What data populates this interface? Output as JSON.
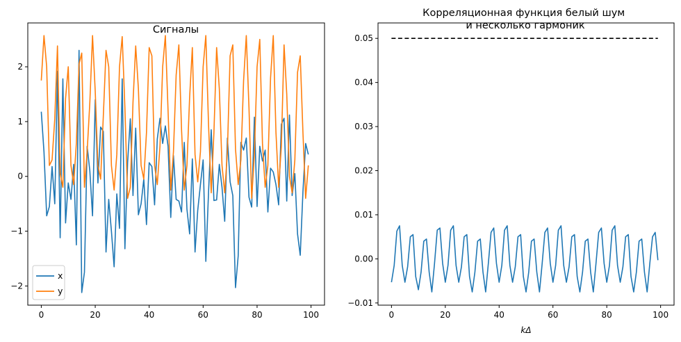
{
  "figure": {
    "colors": {
      "x": "#1f77b4",
      "y": "#ff7f0e",
      "reference": "#000000"
    }
  },
  "chart_data": [
    {
      "type": "line",
      "title": "Сигналы",
      "xlabel": "",
      "ylabel": "",
      "xlim": [
        -5,
        105
      ],
      "ylim": [
        -2.35,
        2.8
      ],
      "xticks": [
        0,
        20,
        40,
        60,
        80,
        100
      ],
      "yticks": [
        -2,
        -1,
        0,
        1,
        2
      ],
      "xtick_labels": [
        "0",
        "20",
        "40",
        "60",
        "80",
        "100"
      ],
      "ytick_labels": [
        "−2",
        "−1",
        "0",
        "1",
        "2"
      ],
      "grid": false,
      "legend": "lower-left",
      "series": [
        {
          "name": "x",
          "color": "#1f77b4",
          "values": [
            1.18,
            0.45,
            -0.72,
            -0.55,
            0.18,
            -0.5,
            1.92,
            -1.12,
            1.78,
            -0.85,
            -0.12,
            -0.42,
            0.22,
            -1.25,
            2.3,
            -2.12,
            -1.75,
            0.55,
            0.1,
            -0.72,
            1.4,
            -0.12,
            0.9,
            0.82,
            -1.38,
            -0.42,
            -1.0,
            -1.65,
            -0.32,
            -0.95,
            1.78,
            -1.32,
            0.25,
            1.05,
            -0.35,
            0.88,
            -0.7,
            -0.5,
            -0.05,
            -0.88,
            0.25,
            0.18,
            -0.52,
            0.68,
            1.06,
            0.6,
            0.92,
            0.55,
            -0.75,
            0.38,
            -0.42,
            -0.45,
            -0.65,
            0.62,
            -0.6,
            -1.05,
            0.32,
            -1.38,
            -0.62,
            -0.15,
            0.3,
            -1.55,
            -0.3,
            0.85,
            -0.44,
            -0.43,
            0.22,
            -0.2,
            -0.82,
            0.7,
            -0.1,
            -0.35,
            -2.03,
            -1.45,
            0.62,
            0.48,
            0.7,
            -0.38,
            -0.56,
            1.08,
            -0.55,
            0.55,
            0.28,
            0.48,
            -0.65,
            0.15,
            0.08,
            -0.15,
            -0.52,
            0.95,
            1.06,
            -0.45,
            1.12,
            -0.35,
            0.05,
            -1.05,
            -1.44,
            -0.28,
            0.6,
            0.4
          ]
        },
        {
          "name": "y",
          "color": "#ff7f0e",
          "values": [
            1.75,
            2.57,
            2.0,
            0.2,
            0.3,
            1.05,
            2.38,
            0.05,
            -0.2,
            1.42,
            2.0,
            0.2,
            -0.15,
            0.6,
            2.05,
            2.25,
            -0.2,
            0.45,
            1.35,
            2.57,
            1.55,
            0.2,
            -0.05,
            1.1,
            2.3,
            2.0,
            0.2,
            -0.25,
            0.4,
            2.0,
            2.55,
            1.25,
            -0.4,
            -0.2,
            1.35,
            2.38,
            1.6,
            0.2,
            -0.05,
            0.8,
            2.35,
            2.2,
            0.2,
            -0.15,
            0.55,
            2.0,
            2.57,
            1.2,
            -0.25,
            0.45,
            1.85,
            2.4,
            0.85,
            -0.25,
            0.2,
            1.45,
            2.35,
            0.4,
            -0.1,
            0.45,
            2.0,
            2.57,
            0.95,
            -0.3,
            0.8,
            2.35,
            1.6,
            0.2,
            -0.3,
            0.45,
            2.2,
            2.4,
            0.5,
            -0.15,
            0.3,
            1.75,
            2.57,
            1.25,
            -0.4,
            0.4,
            2.0,
            2.5,
            0.6,
            -0.2,
            0.2,
            1.8,
            2.57,
            0.8,
            -0.2,
            0.55,
            2.4,
            1.5,
            0.0,
            -0.3,
            0.3,
            1.9,
            2.2,
            0.8,
            -0.4,
            0.2
          ]
        }
      ]
    },
    {
      "type": "line",
      "title": "Корреляционная функция белый шум\nи несколько гармоник",
      "xlabel": "kΔ",
      "ylabel": "",
      "xlim": [
        -5,
        105
      ],
      "ylim": [
        -0.0105,
        0.0535
      ],
      "xticks": [
        0,
        20,
        40,
        60,
        80,
        100
      ],
      "yticks": [
        -0.01,
        0.0,
        0.01,
        0.02,
        0.03,
        0.04,
        0.05
      ],
      "xtick_labels": [
        "0",
        "20",
        "40",
        "60",
        "80",
        "100"
      ],
      "ytick_labels": [
        "−0.01",
        "0.00",
        "0.01",
        "0.02",
        "0.03",
        "0.04",
        "0.05"
      ],
      "grid": false,
      "legend": "none",
      "series": [
        {
          "name": "",
          "color": "#1f77b4",
          "values": [
            -0.0053,
            -0.0015,
            0.0063,
            0.0075,
            -0.0015,
            -0.0053,
            -0.0018,
            0.005,
            0.0055,
            -0.004,
            -0.007,
            -0.003,
            0.004,
            0.0045,
            -0.003,
            -0.0075,
            -0.001,
            0.0065,
            0.007,
            -0.001,
            -0.0053,
            -0.0015,
            0.0065,
            0.0075,
            -0.0015,
            -0.0053,
            -0.0018,
            0.005,
            0.0055,
            -0.004,
            -0.0075,
            -0.003,
            0.004,
            0.0045,
            -0.003,
            -0.0075,
            -0.001,
            0.006,
            0.007,
            -0.001,
            -0.0053,
            -0.0015,
            0.0065,
            0.0075,
            -0.0015,
            -0.0053,
            -0.0018,
            0.005,
            0.0055,
            -0.004,
            -0.0075,
            -0.003,
            0.004,
            0.0045,
            -0.003,
            -0.0075,
            -0.001,
            0.006,
            0.007,
            -0.001,
            -0.0053,
            -0.0015,
            0.0065,
            0.0075,
            -0.0015,
            -0.0053,
            -0.0018,
            0.005,
            0.0055,
            -0.004,
            -0.0075,
            -0.003,
            0.004,
            0.0045,
            -0.003,
            -0.0075,
            -0.001,
            0.006,
            0.007,
            -0.001,
            -0.0053,
            -0.0015,
            0.0065,
            0.0075,
            -0.0015,
            -0.0053,
            -0.0018,
            0.005,
            0.0055,
            -0.004,
            -0.0075,
            -0.003,
            0.004,
            0.0045,
            -0.003,
            -0.0075,
            -0.001,
            0.005,
            0.006,
            -0.0003
          ]
        },
        {
          "name": "",
          "color": "#000000",
          "style": "dashed",
          "x": [
            0,
            99
          ],
          "values": [
            0.05,
            0.05
          ]
        }
      ]
    }
  ]
}
